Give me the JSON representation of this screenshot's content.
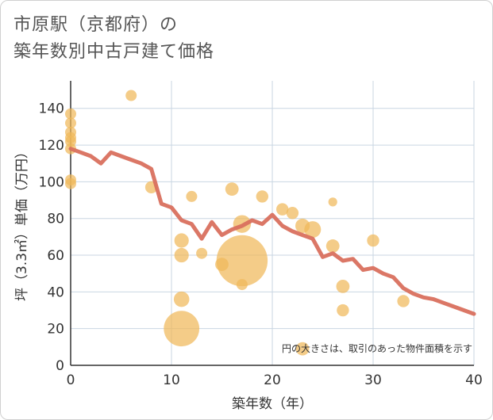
{
  "title": {
    "line1": "市原駅（京都府）の",
    "line2": "築年数別中古戸建て価格"
  },
  "chart_data": {
    "type": "scatter",
    "xlabel": "築年数（年）",
    "ylabel": "坪（3.3㎡）単価（万円）",
    "xlim": [
      0,
      40
    ],
    "ylim": [
      0,
      155
    ],
    "xticks": [
      0,
      10,
      20,
      30,
      40
    ],
    "yticks": [
      0,
      20,
      40,
      60,
      80,
      100,
      120,
      140
    ],
    "grid": true,
    "note": "円の大きさは、取引のあった物件面積を示す",
    "colors": {
      "bubble": "#f0b95a",
      "line": "#d9705e"
    },
    "points": [
      {
        "x": 0,
        "y": 137,
        "s": 1
      },
      {
        "x": 0,
        "y": 132,
        "s": 1
      },
      {
        "x": 0,
        "y": 127,
        "s": 1
      },
      {
        "x": 0,
        "y": 124,
        "s": 1
      },
      {
        "x": 0,
        "y": 122,
        "s": 1
      },
      {
        "x": 0,
        "y": 118,
        "s": 1
      },
      {
        "x": 0,
        "y": 101,
        "s": 1
      },
      {
        "x": 0,
        "y": 99,
        "s": 1
      },
      {
        "x": 6,
        "y": 147,
        "s": 1
      },
      {
        "x": 8,
        "y": 97,
        "s": 1.1
      },
      {
        "x": 11,
        "y": 68,
        "s": 1.3
      },
      {
        "x": 11,
        "y": 60,
        "s": 1.3
      },
      {
        "x": 11,
        "y": 36,
        "s": 1.4
      },
      {
        "x": 11,
        "y": 20,
        "s": 3.2
      },
      {
        "x": 12,
        "y": 92,
        "s": 1
      },
      {
        "x": 13,
        "y": 61,
        "s": 1
      },
      {
        "x": 15,
        "y": 55,
        "s": 1.2
      },
      {
        "x": 16,
        "y": 96,
        "s": 1.2
      },
      {
        "x": 17,
        "y": 77,
        "s": 1.6
      },
      {
        "x": 17,
        "y": 57,
        "s": 4.6
      },
      {
        "x": 17,
        "y": 44,
        "s": 1
      },
      {
        "x": 19,
        "y": 92,
        "s": 1.1
      },
      {
        "x": 21,
        "y": 85,
        "s": 1.1
      },
      {
        "x": 22,
        "y": 83,
        "s": 1.1
      },
      {
        "x": 23,
        "y": 76,
        "s": 1.3
      },
      {
        "x": 23,
        "y": 9,
        "s": 1.2
      },
      {
        "x": 24,
        "y": 74,
        "s": 1.5
      },
      {
        "x": 26,
        "y": 89,
        "s": 0.8
      },
      {
        "x": 26,
        "y": 65,
        "s": 1.2
      },
      {
        "x": 27,
        "y": 43,
        "s": 1.2
      },
      {
        "x": 27,
        "y": 30,
        "s": 1.1
      },
      {
        "x": 30,
        "y": 68,
        "s": 1.1
      },
      {
        "x": 33,
        "y": 35,
        "s": 1.1
      }
    ],
    "trend": {
      "x": [
        0,
        1,
        2,
        3,
        4,
        5,
        6,
        7,
        8,
        9,
        10,
        11,
        12,
        13,
        14,
        15,
        16,
        17,
        18,
        19,
        20,
        21,
        22,
        23,
        24,
        25,
        26,
        27,
        28,
        29,
        30,
        31,
        32,
        33,
        34,
        35,
        36,
        37,
        38,
        39,
        40
      ],
      "y": [
        118,
        116,
        114,
        110,
        116,
        114,
        112,
        110,
        107,
        88,
        86,
        79,
        77,
        69,
        78,
        71,
        74,
        76,
        79,
        77,
        82,
        76,
        73,
        71,
        69,
        59,
        61,
        57,
        58,
        52,
        53,
        50,
        48,
        42,
        39,
        37,
        36,
        34,
        32,
        30,
        28
      ]
    }
  }
}
